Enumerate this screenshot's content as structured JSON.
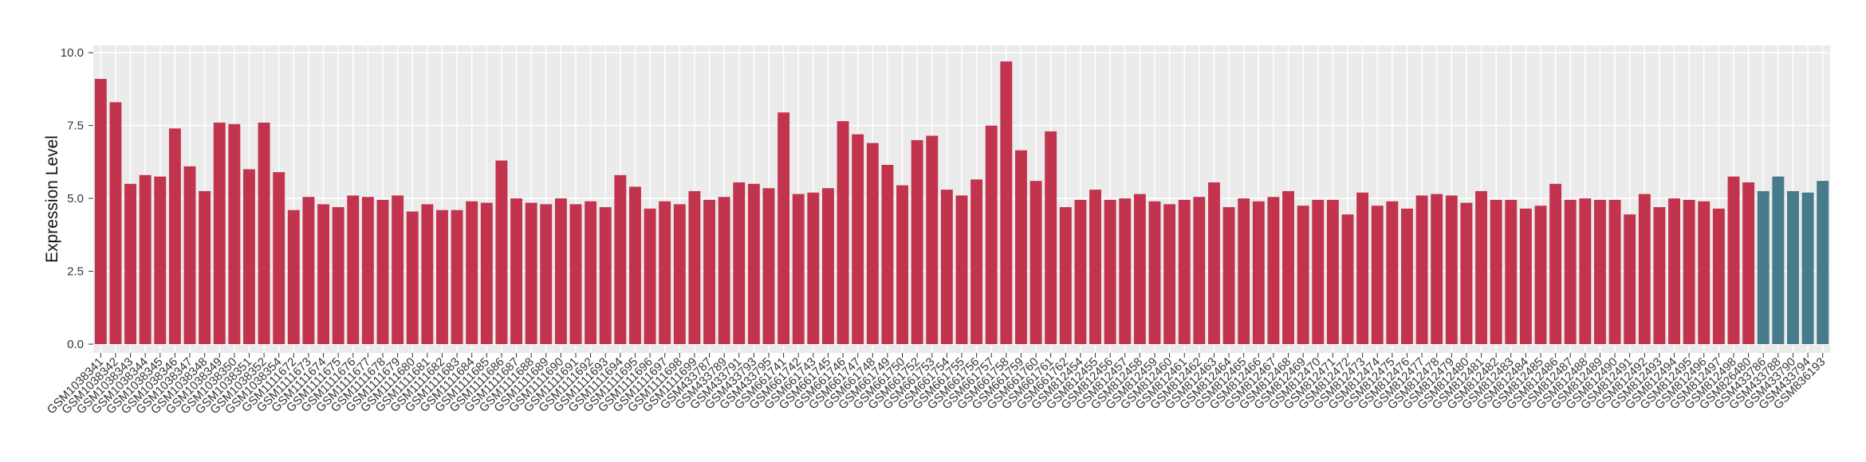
{
  "chart_data": {
    "type": "bar",
    "y_label": "Expression Level",
    "categories": [
      "GSM1038341",
      "GSM1038342",
      "GSM1038343",
      "GSM1038344",
      "GSM1038345",
      "GSM1038346",
      "GSM1038347",
      "GSM1038348",
      "GSM1038349",
      "GSM1038350",
      "GSM1038351",
      "GSM1038352",
      "GSM1038354",
      "GSM1111672",
      "GSM1111673",
      "GSM1111674",
      "GSM1111675",
      "GSM1111676",
      "GSM1111677",
      "GSM1111678",
      "GSM1111679",
      "GSM1111680",
      "GSM1111681",
      "GSM1111682",
      "GSM1111683",
      "GSM1111684",
      "GSM1111685",
      "GSM1111686",
      "GSM1111687",
      "GSM1111688",
      "GSM1111689",
      "GSM1111690",
      "GSM1111691",
      "GSM1111692",
      "GSM1111693",
      "GSM1111694",
      "GSM1111695",
      "GSM1111696",
      "GSM1111697",
      "GSM1111698",
      "GSM1111699",
      "GSM433787",
      "GSM433789",
      "GSM433791",
      "GSM433793",
      "GSM433795",
      "GSM661741",
      "GSM661742",
      "GSM661743",
      "GSM661745",
      "GSM661746",
      "GSM661747",
      "GSM661748",
      "GSM661749",
      "GSM661750",
      "GSM661752",
      "GSM661753",
      "GSM661754",
      "GSM661755",
      "GSM661756",
      "GSM661757",
      "GSM661758",
      "GSM661759",
      "GSM661760",
      "GSM661761",
      "GSM661762",
      "GSM812454",
      "GSM812455",
      "GSM812456",
      "GSM812457",
      "GSM812458",
      "GSM812459",
      "GSM812460",
      "GSM812461",
      "GSM812462",
      "GSM812463",
      "GSM812464",
      "GSM812465",
      "GSM812466",
      "GSM812467",
      "GSM812468",
      "GSM812469",
      "GSM812470",
      "GSM812471",
      "GSM812472",
      "GSM812473",
      "GSM812474",
      "GSM812475",
      "GSM812476",
      "GSM812477",
      "GSM812478",
      "GSM812479",
      "GSM812480",
      "GSM812481",
      "GSM812482",
      "GSM812483",
      "GSM812484",
      "GSM812485",
      "GSM812486",
      "GSM812487",
      "GSM812488",
      "GSM812489",
      "GSM812490",
      "GSM812491",
      "GSM812492",
      "GSM812493",
      "GSM812494",
      "GSM812495",
      "GSM812496",
      "GSM812497",
      "GSM812498",
      "GSM826480",
      "GSM433786",
      "GSM433788",
      "GSM433790",
      "GSM433794",
      "GSM836193"
    ],
    "series": [
      {
        "color": "#c2334d",
        "values": [
          9.1,
          8.3,
          5.5,
          5.8,
          5.75,
          7.4,
          6.1,
          5.25,
          7.6,
          7.55,
          6.0,
          7.6,
          5.9,
          4.6,
          5.05,
          4.8,
          4.7,
          5.1,
          5.05,
          4.95,
          5.1,
          4.55,
          4.8,
          4.6,
          4.6,
          4.9,
          4.85,
          6.3,
          5.0,
          4.85,
          4.8,
          5.0,
          4.8,
          4.9,
          4.7,
          5.8,
          5.4,
          4.65,
          4.9,
          4.8,
          5.25,
          4.95,
          5.05,
          5.55,
          5.5,
          5.35,
          7.95,
          5.15,
          5.2,
          5.35,
          7.65,
          7.2,
          6.9,
          6.15,
          5.45,
          7.0,
          7.15,
          5.3,
          5.1,
          5.65,
          7.5,
          9.7,
          6.65,
          5.6,
          7.3,
          4.7,
          4.95,
          5.3,
          4.95,
          5.0,
          5.15,
          4.9,
          4.8,
          4.95,
          5.05,
          5.55,
          4.7,
          5.0,
          4.9,
          5.05,
          5.25,
          4.75,
          4.95,
          4.95,
          4.45,
          5.2,
          4.75,
          4.9,
          4.65,
          5.1,
          5.15,
          5.1,
          4.85,
          5.25,
          4.95,
          4.95,
          4.65,
          4.75,
          5.5,
          4.95,
          5.0,
          4.95,
          4.95,
          4.45,
          5.15,
          4.7,
          5.0,
          4.95,
          4.9,
          4.65,
          5.75,
          5.55,
          null,
          null,
          null,
          null,
          null
        ]
      },
      {
        "color": "#477b8b",
        "values": [
          null,
          null,
          null,
          null,
          null,
          null,
          null,
          null,
          null,
          null,
          null,
          null,
          null,
          null,
          null,
          null,
          null,
          null,
          null,
          null,
          null,
          null,
          null,
          null,
          null,
          null,
          null,
          null,
          null,
          null,
          null,
          null,
          null,
          null,
          null,
          null,
          null,
          null,
          null,
          null,
          null,
          null,
          null,
          null,
          null,
          null,
          null,
          null,
          null,
          null,
          null,
          null,
          null,
          null,
          null,
          null,
          null,
          null,
          null,
          null,
          null,
          null,
          null,
          null,
          null,
          null,
          null,
          null,
          null,
          null,
          null,
          null,
          null,
          null,
          null,
          null,
          null,
          null,
          null,
          null,
          null,
          null,
          null,
          null,
          null,
          null,
          null,
          null,
          null,
          null,
          null,
          null,
          null,
          null,
          null,
          null,
          null,
          null,
          null,
          null,
          null,
          null,
          null,
          null,
          null,
          null,
          null,
          null,
          null,
          null,
          null,
          null,
          5.25,
          5.75,
          5.25,
          5.2,
          5.6
        ]
      }
    ],
    "ylim": [
      -0.3,
      10.25
    ],
    "yticks": [
      {
        "value": 0,
        "label": "0.0"
      },
      {
        "value": 2.5,
        "label": "2.5"
      },
      {
        "value": 5,
        "label": "5.0"
      },
      {
        "value": 7.5,
        "label": "7.5"
      },
      {
        "value": 10,
        "label": "10.0"
      }
    ],
    "grid": true
  }
}
